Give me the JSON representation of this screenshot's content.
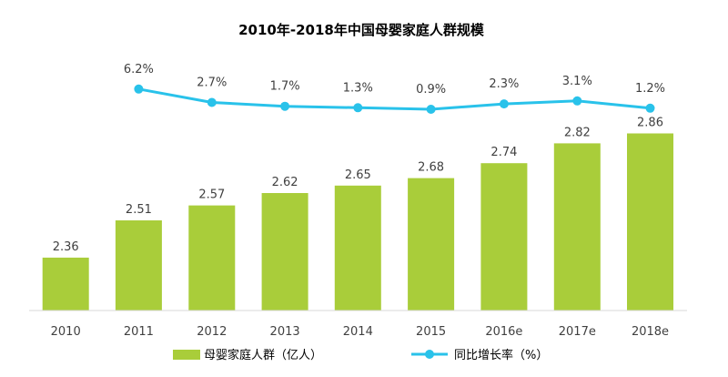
{
  "chart_data": {
    "type": "bar",
    "title": "2010年-2018年中国母婴家庭人群规模",
    "categories": [
      "2010",
      "2011",
      "2012",
      "2013",
      "2014",
      "2015",
      "2016e",
      "2017e",
      "2018e"
    ],
    "series": [
      {
        "name": "母婴家庭人群（亿人）",
        "type": "bar",
        "values": [
          2.36,
          2.51,
          2.57,
          2.62,
          2.65,
          2.68,
          2.74,
          2.82,
          2.86
        ],
        "labels": [
          "2.36",
          "2.51",
          "2.57",
          "2.62",
          "2.65",
          "2.68",
          "2.74",
          "2.82",
          "2.86"
        ],
        "color": "#a9cd3a"
      },
      {
        "name": "同比增长率（%）",
        "type": "line",
        "values": [
          null,
          6.2,
          2.7,
          1.7,
          1.3,
          0.9,
          2.3,
          3.1,
          1.2
        ],
        "labels": [
          "",
          "6.2%",
          "2.7%",
          "1.7%",
          "1.3%",
          "0.9%",
          "2.3%",
          "3.1%",
          "1.2%"
        ],
        "color": "#29c2ea"
      }
    ],
    "legend_position": "bottom",
    "grid": false
  }
}
